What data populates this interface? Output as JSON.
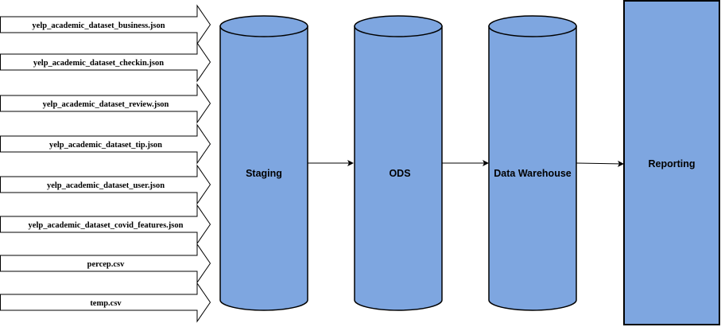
{
  "sources": [
    "yelp_academic_dataset_business.json",
    "yelp_academic_dataset_checkin.json",
    "yelp_academic_dataset_review.json",
    "yelp_academic_dataset_tip.json",
    "yelp_academic_dataset_user.json",
    "yelp_academic_dataset_covid_features.json",
    "percep.csv",
    "temp.csv"
  ],
  "stages": [
    {
      "label": "Staging",
      "shape": "cylinder"
    },
    {
      "label": "ODS",
      "shape": "cylinder"
    },
    {
      "label": "Data Warehouse",
      "shape": "cylinder"
    },
    {
      "label": "Reporting",
      "shape": "rectangle"
    }
  ],
  "colors": {
    "fill": "#7ea6e0",
    "stroke": "#000000",
    "arrow_fill": "#ffffff"
  }
}
